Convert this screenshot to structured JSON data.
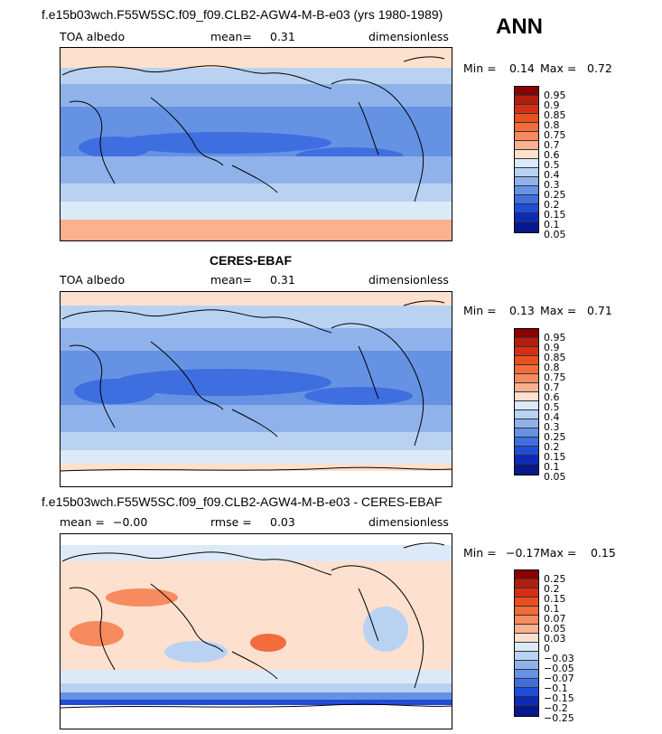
{
  "season": "ANN",
  "panels": [
    {
      "title": "f.e15b03wch.F55W5SC.f09_f09.CLB2-AGW4-M-B-e03 (yrs 1980-1989)",
      "left_label": "TOA albedo",
      "mean_label": "mean=",
      "mean_value": "0.31",
      "units": "dimensionless",
      "min_label": "Min =",
      "min_value": "0.14",
      "max_label": "Max =",
      "max_value": "0.72",
      "colorbar": {
        "labels": [
          "0.95",
          "0.9",
          "0.85",
          "0.8",
          "0.75",
          "0.7",
          "0.6",
          "0.5",
          "0.4",
          "0.3",
          "0.25",
          "0.2",
          "0.15",
          "0.1",
          "0.05"
        ],
        "colors": [
          "#8b0000",
          "#b21e0d",
          "#d42f14",
          "#e8501f",
          "#f36c3b",
          "#f88a5f",
          "#fbb08e",
          "#fde0ce",
          "#dce9f8",
          "#b9d2f2",
          "#8fb2ea",
          "#6692e3",
          "#3f6ee0",
          "#1f4dd8",
          "#0e2bb8",
          "#06198c"
        ]
      }
    },
    {
      "title": "CERES-EBAF",
      "left_label": "TOA albedo",
      "mean_label": "mean=",
      "mean_value": "0.31",
      "units": "dimensionless",
      "min_label": "Min =",
      "min_value": "0.13",
      "max_label": "Max =",
      "max_value": "0.71",
      "colorbar": {
        "labels": [
          "0.95",
          "0.9",
          "0.85",
          "0.8",
          "0.75",
          "0.7",
          "0.6",
          "0.5",
          "0.4",
          "0.3",
          "0.25",
          "0.2",
          "0.15",
          "0.1",
          "0.05"
        ],
        "colors": [
          "#8b0000",
          "#b21e0d",
          "#d42f14",
          "#e8501f",
          "#f36c3b",
          "#f88a5f",
          "#fbb08e",
          "#fde0ce",
          "#dce9f8",
          "#b9d2f2",
          "#8fb2ea",
          "#6692e3",
          "#3f6ee0",
          "#1f4dd8",
          "#0e2bb8",
          "#06198c"
        ]
      }
    },
    {
      "title": "f.e15b03wch.F55W5SC.f09_f09.CLB2-AGW4-M-B-e03 - CERES-EBAF",
      "left_label": "mean =",
      "left_value": "−0.00",
      "mean_label": "rmse =",
      "mean_value": "0.03",
      "units": "dimensionless",
      "min_label": "Min =",
      "min_value": "−0.17",
      "max_label": "Max =",
      "max_value": "0.15",
      "colorbar": {
        "labels": [
          "0.25",
          "0.2",
          "0.15",
          "0.1",
          "0.07",
          "0.05",
          "0.03",
          "0",
          "−0.03",
          "−0.05",
          "−0.07",
          "−0.1",
          "−0.15",
          "−0.2",
          "−0.25"
        ],
        "colors": [
          "#8b0000",
          "#b21e0d",
          "#d42f14",
          "#e8501f",
          "#f36c3b",
          "#f88a5f",
          "#fbb08e",
          "#fde0ce",
          "#dce9f8",
          "#b9d2f2",
          "#8fb2ea",
          "#6692e3",
          "#3f6ee0",
          "#1f4dd8",
          "#0e2bb8",
          "#06198c"
        ]
      }
    }
  ]
}
